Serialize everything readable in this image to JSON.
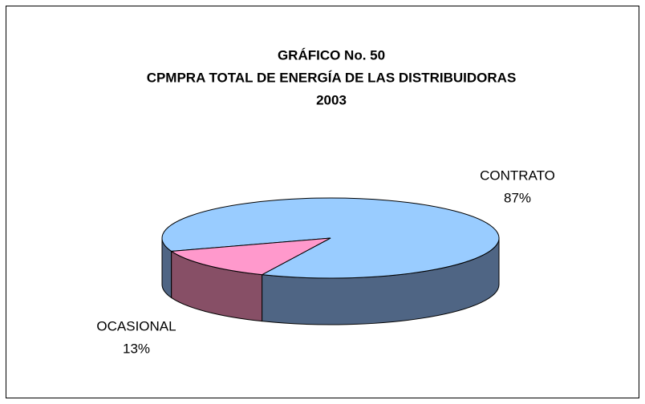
{
  "chart_data": {
    "type": "pie3d",
    "title_lines": [
      "GRÁFICO No.  50",
      "CPMPRA TOTAL DE ENERGÍA DE LAS DISTRIBUIDORAS",
      "2003"
    ],
    "categories": [
      "CONTRATO",
      "OCASIONAL"
    ],
    "values": [
      87,
      13
    ],
    "value_labels": [
      "87%",
      "13%"
    ],
    "colors": [
      "#99ccff",
      "#ff99cc"
    ],
    "side_colors": [
      "#4f6584",
      "#874f66"
    ]
  }
}
